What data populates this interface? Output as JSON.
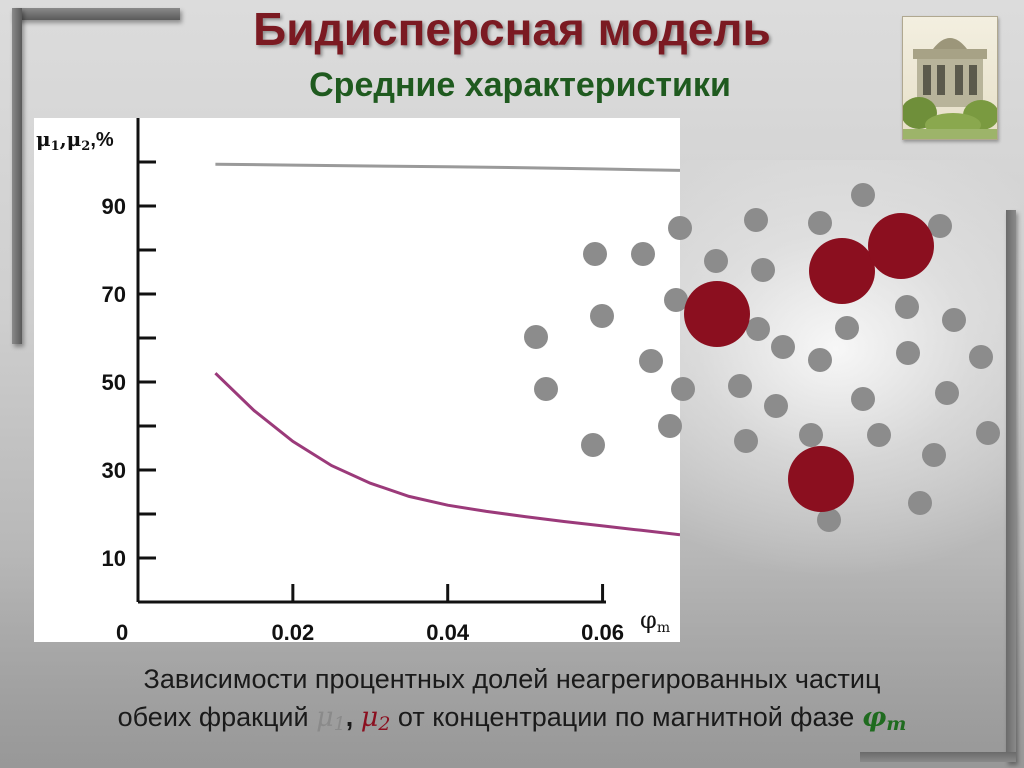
{
  "slide": {
    "title": "Бидисперсная модель",
    "subtitle": "Средние характеристики",
    "caption": {
      "line1": "Зависимости процентных долей неагрегированных частиц",
      "line2_prefix": "обеих фракций ",
      "mu1_symbol": "μ",
      "mu1_index": "1",
      "comma": ", ",
      "mu2_symbol": "μ",
      "mu2_index": "2",
      "line2_middle": " от концентрации по магнитной фазе ",
      "phi_symbol": "φ",
      "phi_index": "m"
    },
    "photo_icon": "building-photo-icon",
    "colors": {
      "title": "#7b1a22",
      "subtitle": "#1f5a1f",
      "curve1": "#9a9a9a",
      "curve2": "#9b3a7a",
      "small_particle": "#8c8c8c",
      "large_particle": "#8b0f1f"
    }
  },
  "chart_data": {
    "type": "line",
    "ylabel_main": "μ",
    "ylabel_idx1": "1",
    "ylabel_comma": ",",
    "ylabel_idx2": "2",
    "ylabel_suffix": ",%",
    "xlabel_symbol": "φ",
    "xlabel_index": "m",
    "xlim": [
      0,
      0.07
    ],
    "ylim": [
      0,
      110
    ],
    "x_ticks": [
      0.02,
      0.04,
      0.06
    ],
    "x_tick_labels": [
      "0.02",
      "0.04",
      "0.06"
    ],
    "origin_label": "0",
    "y_ticks_major": [
      10,
      30,
      50,
      70,
      90
    ],
    "y_tick_labels": [
      "10",
      "30",
      "50",
      "70",
      "90"
    ],
    "y_ticks_minor": [
      20,
      40,
      60,
      80,
      100
    ],
    "grid": false,
    "series": [
      {
        "label": "1",
        "x": [
          0.01,
          0.02,
          0.03,
          0.04,
          0.05,
          0.06,
          0.07
        ],
        "values": [
          99.5,
          99.3,
          99.1,
          98.9,
          98.7,
          98.4,
          98.1
        ]
      },
      {
        "label": "2",
        "x": [
          0.01,
          0.015,
          0.02,
          0.025,
          0.03,
          0.035,
          0.04,
          0.045,
          0.05,
          0.055,
          0.06,
          0.065,
          0.07
        ],
        "values": [
          52,
          43.5,
          36.5,
          31,
          27,
          24,
          22,
          20.6,
          19.4,
          18.3,
          17.3,
          16.3,
          15.3
        ]
      }
    ]
  },
  "particles": {
    "small": [
      [
        595,
        254
      ],
      [
        643,
        254
      ],
      [
        680,
        228
      ],
      [
        756,
        220
      ],
      [
        820,
        223
      ],
      [
        863,
        195
      ],
      [
        940,
        226
      ],
      [
        716,
        261
      ],
      [
        763,
        270
      ],
      [
        602,
        316
      ],
      [
        676,
        300
      ],
      [
        758,
        329
      ],
      [
        847,
        328
      ],
      [
        907,
        307
      ],
      [
        954,
        320
      ],
      [
        536,
        337
      ],
      [
        651,
        361
      ],
      [
        783,
        347
      ],
      [
        820,
        360
      ],
      [
        908,
        353
      ],
      [
        981,
        357
      ],
      [
        546,
        389
      ],
      [
        683,
        389
      ],
      [
        740,
        386
      ],
      [
        776,
        406
      ],
      [
        863,
        399
      ],
      [
        947,
        393
      ],
      [
        593,
        445
      ],
      [
        670,
        426
      ],
      [
        746,
        441
      ],
      [
        811,
        435
      ],
      [
        879,
        435
      ],
      [
        934,
        455
      ],
      [
        988,
        433
      ],
      [
        829,
        520
      ],
      [
        920,
        503
      ]
    ],
    "large": [
      [
        717,
        314
      ],
      [
        842,
        271
      ],
      [
        901,
        246
      ],
      [
        821,
        479
      ]
    ]
  }
}
